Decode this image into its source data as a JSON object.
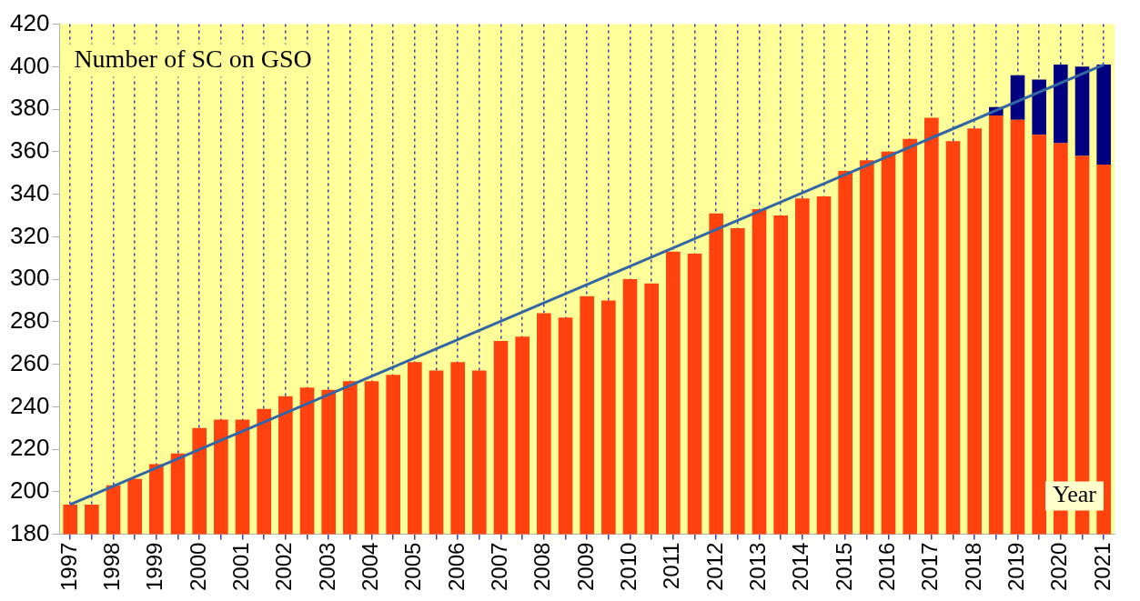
{
  "chart_data": {
    "type": "bar",
    "title": "Number of SC on GSO",
    "xlabel": "Year",
    "categories": [
      "1997",
      null,
      "1998",
      null,
      "1999",
      null,
      "2000",
      null,
      "2001",
      null,
      "2002",
      null,
      "2003",
      null,
      "2004",
      null,
      "2005",
      null,
      "2006",
      null,
      "2007",
      null,
      "2008",
      null,
      "2009",
      null,
      "2010",
      null,
      "2011",
      null,
      "2012",
      null,
      "2013",
      null,
      "2014",
      null,
      "2015",
      null,
      "2016",
      null,
      "2017",
      null,
      "2018",
      null,
      "2019",
      null,
      "2020",
      null,
      "2021"
    ],
    "series": [
      {
        "color": "#ff420e",
        "values": [
          194,
          194,
          203,
          206,
          213,
          218,
          230,
          234,
          234,
          239,
          245,
          249,
          248,
          252,
          252,
          255,
          261,
          257,
          261,
          257,
          271,
          273,
          284,
          282,
          292,
          290,
          300,
          298,
          313,
          312,
          331,
          324,
          333,
          330,
          338,
          339,
          351,
          356,
          360,
          366,
          376,
          365,
          371,
          377,
          375,
          368,
          364,
          358,
          354
        ]
      },
      {
        "color": "#000080",
        "base": [
          null,
          null,
          null,
          null,
          null,
          null,
          null,
          null,
          null,
          null,
          null,
          null,
          null,
          null,
          null,
          null,
          null,
          null,
          null,
          null,
          null,
          null,
          null,
          null,
          null,
          null,
          null,
          null,
          null,
          null,
          null,
          null,
          null,
          null,
          null,
          null,
          null,
          null,
          null,
          null,
          null,
          null,
          null,
          377,
          375,
          368,
          364,
          358,
          354
        ],
        "values": [
          null,
          null,
          null,
          null,
          null,
          null,
          null,
          null,
          null,
          null,
          null,
          null,
          null,
          null,
          null,
          null,
          null,
          null,
          null,
          null,
          null,
          null,
          null,
          null,
          null,
          null,
          null,
          null,
          null,
          null,
          null,
          null,
          null,
          null,
          null,
          null,
          null,
          null,
          null,
          null,
          null,
          null,
          null,
          4,
          21,
          26,
          37,
          42,
          47
        ]
      },
      {
        "type": "line",
        "color": "#3465a4",
        "values": [
          194,
          null,
          null,
          null,
          null,
          null,
          null,
          null,
          null,
          null,
          null,
          null,
          null,
          null,
          null,
          null,
          null,
          null,
          null,
          null,
          null,
          null,
          null,
          null,
          null,
          null,
          null,
          null,
          null,
          null,
          null,
          null,
          null,
          null,
          null,
          null,
          null,
          null,
          null,
          null,
          null,
          null,
          null,
          null,
          null,
          null,
          null,
          null,
          401
        ]
      }
    ],
    "ylim": [
      180,
      420
    ],
    "yticks": [
      180,
      200,
      220,
      240,
      260,
      280,
      300,
      320,
      340,
      360,
      380,
      400,
      420
    ],
    "grid": "x",
    "legend": false
  }
}
